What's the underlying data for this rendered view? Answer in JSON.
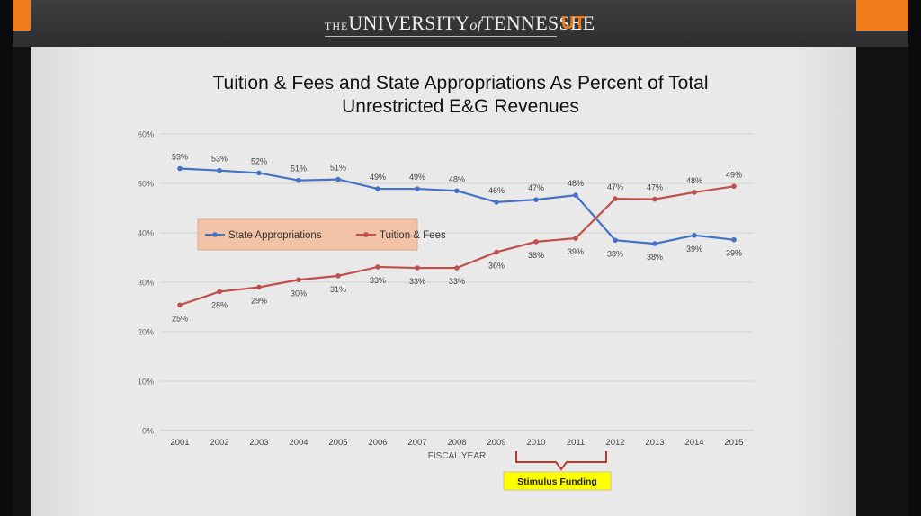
{
  "brand": {
    "the": "THE",
    "university": "UNIVERSITY",
    "of": "of",
    "tennessee": "TENNESSEE",
    "logo": "UT"
  },
  "chart_data": {
    "type": "line",
    "title_line1": "Tuition & Fees and State Appropriations As Percent of Total",
    "title_line2": "Unrestricted E&G Revenues",
    "xlabel": "FISCAL YEAR",
    "ylabel": "",
    "categories": [
      "2001",
      "2002",
      "2003",
      "2004",
      "2005",
      "2006",
      "2007",
      "2008",
      "2009",
      "2010",
      "2011",
      "2012",
      "2013",
      "2014",
      "2015"
    ],
    "ylim": [
      0,
      60
    ],
    "yticks": [
      "0%",
      "10%",
      "20%",
      "30%",
      "40%",
      "50%",
      "60%"
    ],
    "grid": true,
    "legend_position": "left-center",
    "series": [
      {
        "name": "State Appropriations",
        "color": "#4472c4",
        "values": [
          53,
          52.6,
          52.1,
          50.6,
          50.8,
          48.9,
          48.9,
          48.5,
          46.2,
          46.7,
          47.6,
          38.5,
          37.8,
          39.5,
          38.6
        ],
        "labels": [
          "53%",
          "53%",
          "52%",
          "51%",
          "51%",
          "49%",
          "49%",
          "48%",
          "46%",
          "47%",
          "48%",
          "38%",
          "38%",
          "39%",
          "39%"
        ]
      },
      {
        "name": "Tuition & Fees",
        "color": "#c0504d",
        "values": [
          25.4,
          28.1,
          29,
          30.5,
          31.3,
          33.1,
          32.9,
          32.9,
          36.1,
          38.2,
          38.9,
          46.9,
          46.8,
          48.2,
          49.4
        ],
        "labels": [
          "25%",
          "28%",
          "29%",
          "30%",
          "31%",
          "33%",
          "33%",
          "33%",
          "36%",
          "38%",
          "39%",
          "47%",
          "47%",
          "48%",
          "49%"
        ]
      }
    ],
    "annotation": {
      "text": "Stimulus Funding",
      "from": "2010",
      "to": "2011",
      "bg": "#ffff00",
      "bracket_color": "#c0392b"
    }
  }
}
